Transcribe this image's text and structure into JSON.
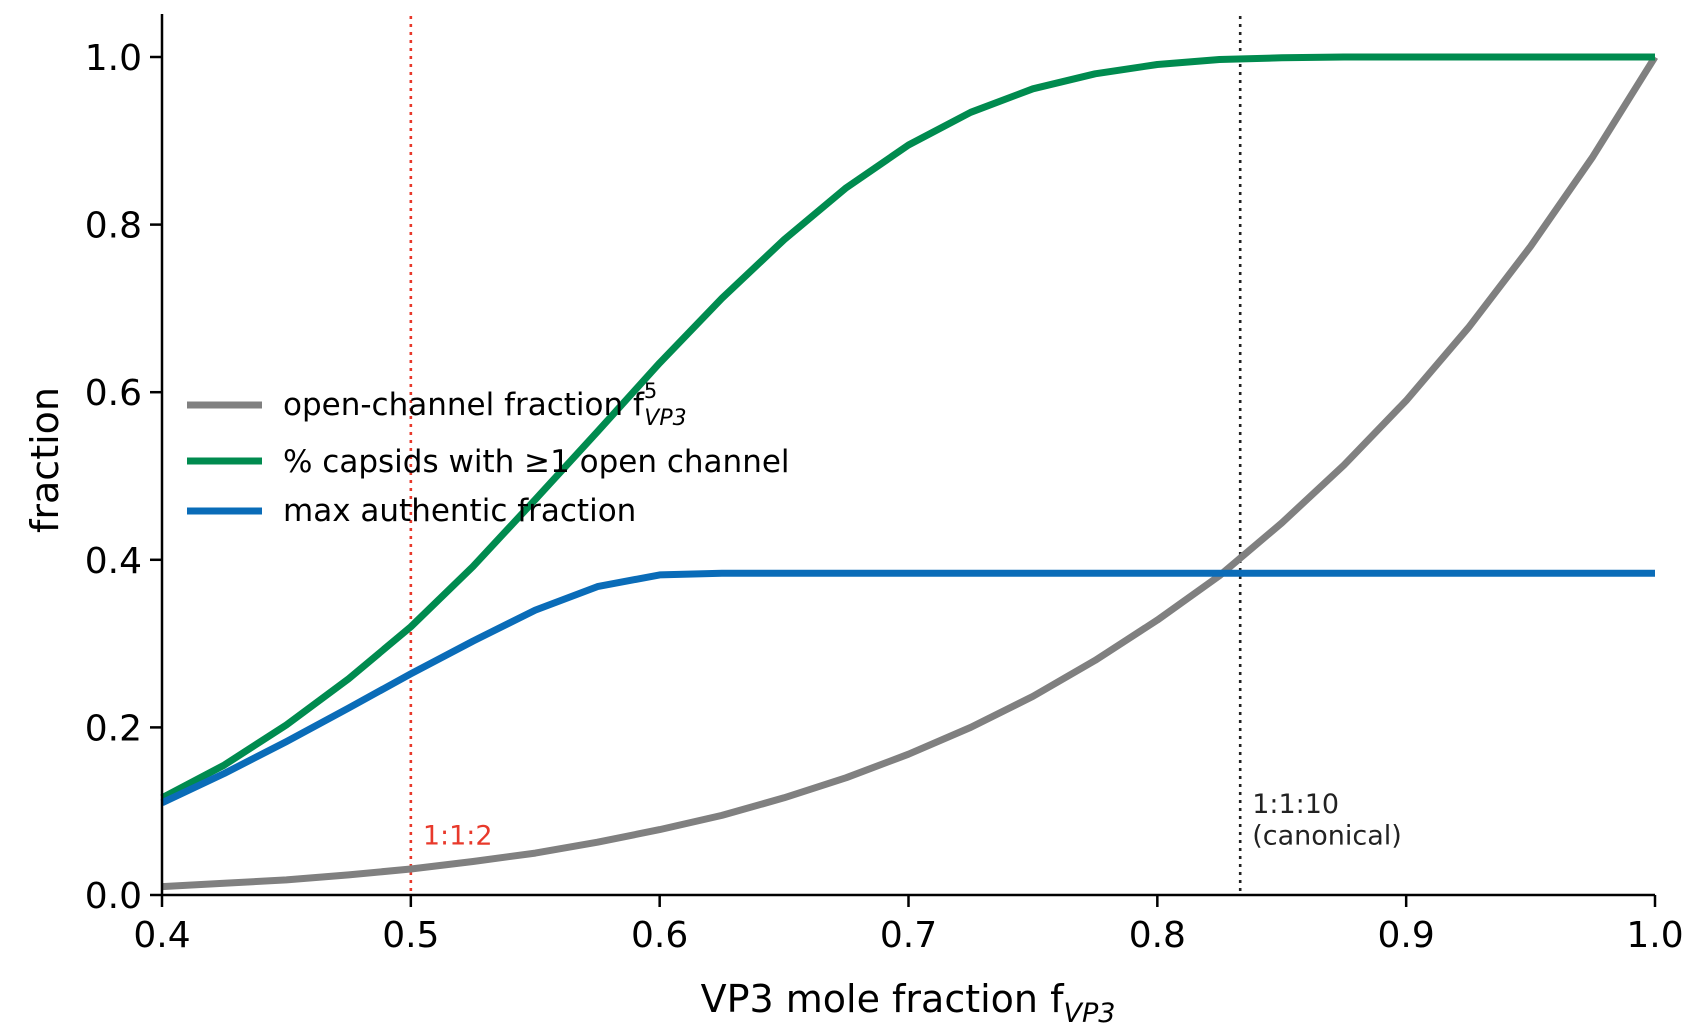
{
  "chart_data": {
    "type": "line",
    "title": "",
    "xlabel": "VP3 mole fraction  f",
    "xlabel_sub": "VP3",
    "ylabel": "fraction",
    "xlim": [
      0.4,
      1.0
    ],
    "ylim": [
      0.0,
      1.05
    ],
    "grid": false,
    "legend_position": "center-left",
    "x_ticks": [
      0.4,
      0.5,
      0.6,
      0.7,
      0.8,
      0.9,
      1.0
    ],
    "x_tick_labels": [
      "0.4",
      "0.5",
      "0.6",
      "0.7",
      "0.8",
      "0.9",
      "1.0"
    ],
    "y_ticks": [
      0.0,
      0.2,
      0.4,
      0.6,
      0.8,
      1.0
    ],
    "y_tick_labels": [
      "0.0",
      "0.2",
      "0.4",
      "0.6",
      "0.8",
      "1.0"
    ],
    "x": [
      0.4,
      0.425,
      0.45,
      0.475,
      0.5,
      0.525,
      0.55,
      0.575,
      0.6,
      0.625,
      0.65,
      0.675,
      0.7,
      0.725,
      0.75,
      0.775,
      0.8,
      0.825,
      0.85,
      0.875,
      0.9,
      0.925,
      0.95,
      0.975,
      1.0
    ],
    "series": [
      {
        "name": "open-channel fraction  f",
        "name_sub": "VP3",
        "name_sup": "5",
        "color": "#808080",
        "values": [
          0.01,
          0.014,
          0.018,
          0.024,
          0.031,
          0.04,
          0.05,
          0.063,
          0.078,
          0.095,
          0.116,
          0.14,
          0.168,
          0.2,
          0.237,
          0.28,
          0.328,
          0.381,
          0.444,
          0.513,
          0.59,
          0.677,
          0.774,
          0.881,
          1.0
        ]
      },
      {
        "name": "% capsids with ≥1 open channel",
        "color": "#008b4f",
        "values": [
          0.116,
          0.155,
          0.203,
          0.258,
          0.32,
          0.392,
          0.472,
          0.553,
          0.635,
          0.712,
          0.782,
          0.844,
          0.895,
          0.934,
          0.962,
          0.98,
          0.991,
          0.997,
          0.999,
          1.0,
          1.0,
          1.0,
          1.0,
          1.0,
          1.0
        ]
      },
      {
        "name": "max authentic fraction",
        "color": "#0a6cb8",
        "values": [
          0.11,
          0.145,
          0.183,
          0.223,
          0.264,
          0.303,
          0.34,
          0.368,
          0.382,
          0.384,
          0.384,
          0.384,
          0.384,
          0.384,
          0.384,
          0.384,
          0.384,
          0.384,
          0.384,
          0.384,
          0.384,
          0.384,
          0.384,
          0.384,
          0.384
        ]
      }
    ],
    "annotations": [
      {
        "x": 0.5,
        "label": "1:1:2",
        "color": "#e8392b"
      },
      {
        "x": 0.8333,
        "label": "1:1:10",
        "label2": "(canonical)",
        "color": "#222222"
      }
    ]
  }
}
